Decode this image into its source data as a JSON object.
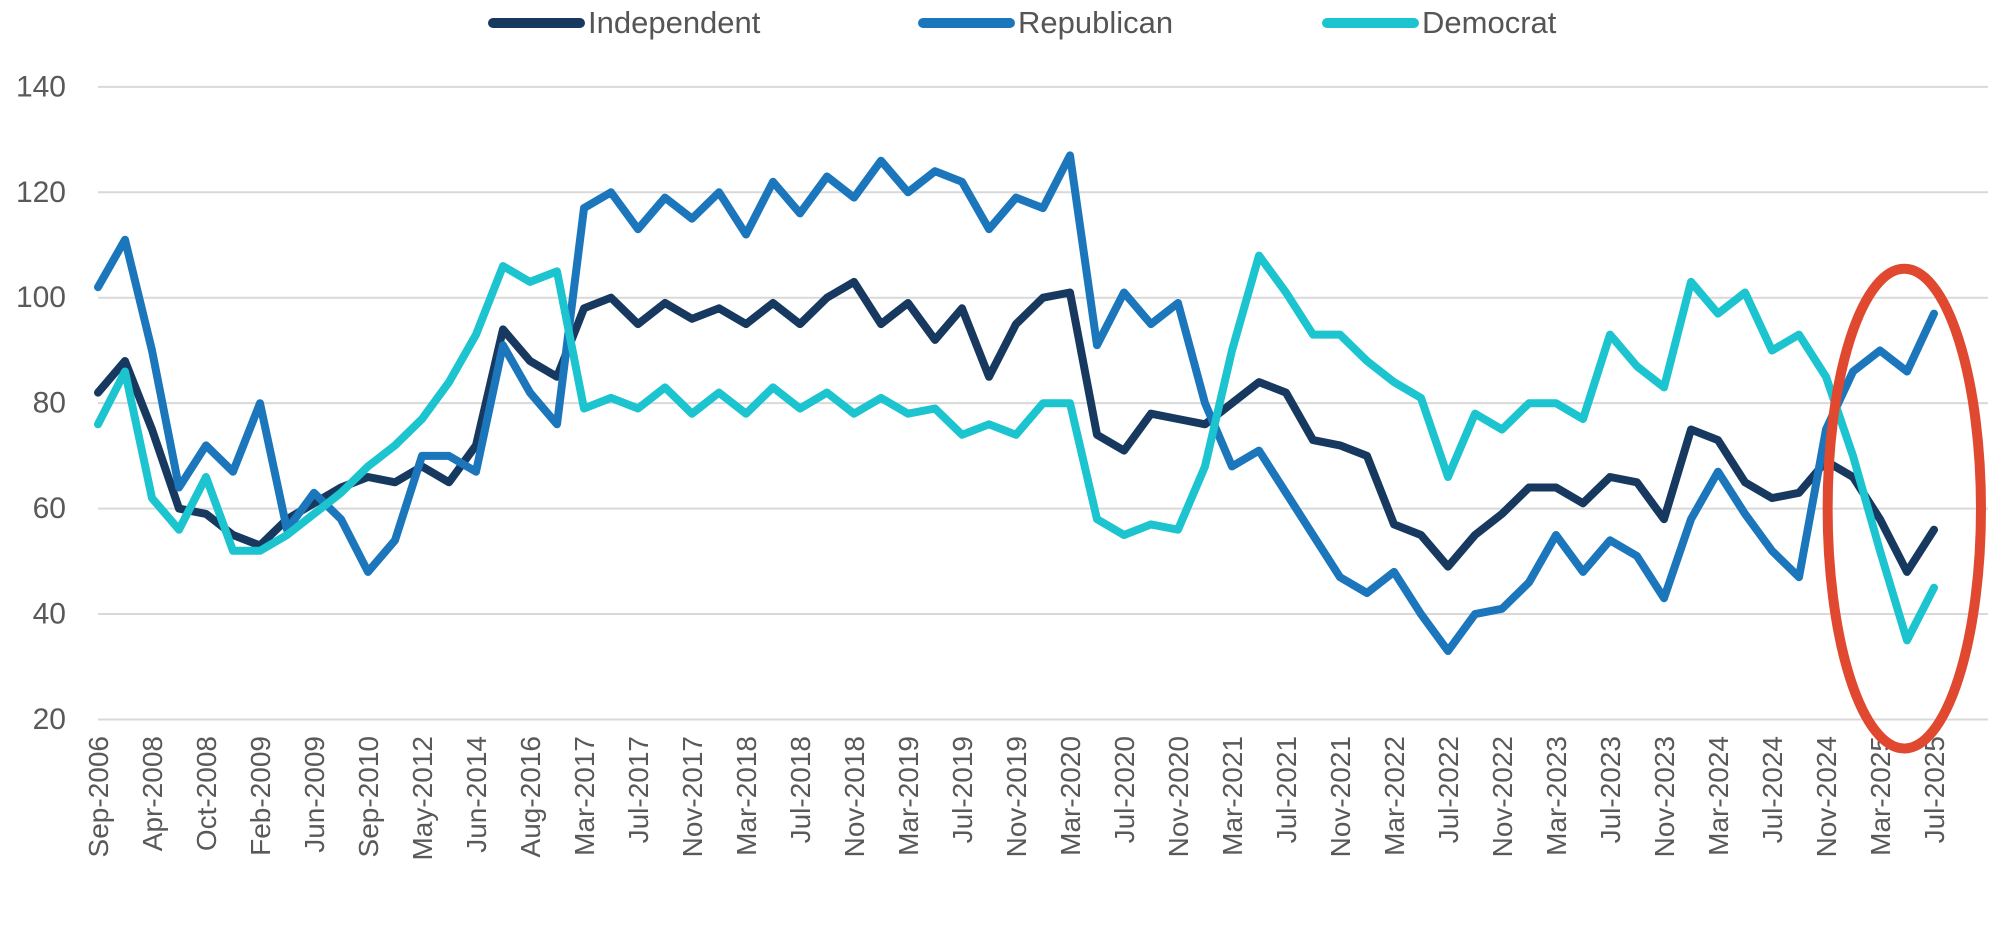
{
  "colors": {
    "background": "#FFFFFF",
    "grid": "#D9D9D9",
    "tick_text": "#595959",
    "legend_text": "#555555",
    "annotation_red": "#E0492F"
  },
  "chart_data": {
    "type": "line",
    "title": "",
    "xlabel": "",
    "ylabel": "",
    "ylim": [
      20,
      140
    ],
    "y_ticks": [
      140,
      120,
      100,
      80,
      60,
      40,
      20
    ],
    "grid": "horizontal light gray lines at each y tick",
    "legend_position": "top-center",
    "x_tick_labels": [
      "Sep-2006",
      "Apr-2008",
      "Oct-2008",
      "Feb-2009",
      "Jun-2009",
      "Sep-2010",
      "May-2012",
      "Jun-2014",
      "Aug-2016",
      "Mar-2017",
      "Jul-2017",
      "Nov-2017",
      "Mar-2018",
      "Jul-2018",
      "Nov-2018",
      "Mar-2019",
      "Jul-2019",
      "Nov-2019",
      "Mar-2020",
      "Jul-2020",
      "Nov-2020",
      "Mar-2021",
      "Jul-2021",
      "Nov-2021",
      "Mar-2022",
      "Jul-2022",
      "Nov-2022",
      "Mar-2023",
      "Jul-2023",
      "Nov-2023",
      "Mar-2024",
      "Jul-2024",
      "Nov-2024",
      "Mar-2025",
      "Jul-2025"
    ],
    "points_per_label_interval": 2,
    "series": [
      {
        "name": "Independent",
        "color": "#17395F",
        "values": [
          82,
          88,
          75,
          60,
          59,
          55,
          53,
          58,
          61,
          64,
          66,
          65,
          68,
          65,
          72,
          94,
          88,
          85,
          98,
          100,
          95,
          99,
          96,
          98,
          95,
          99,
          95,
          100,
          103,
          95,
          99,
          92,
          98,
          85,
          95,
          100,
          101,
          74,
          71,
          78,
          77,
          76,
          80,
          84,
          82,
          73,
          72,
          70,
          57,
          55,
          49,
          55,
          59,
          64,
          64,
          61,
          66,
          65,
          58,
          75,
          73,
          65,
          62,
          63,
          69,
          66,
          58,
          48,
          56
        ]
      },
      {
        "name": "Republican",
        "color": "#1B76BC",
        "values": [
          102,
          111,
          90,
          64,
          72,
          67,
          80,
          56,
          63,
          58,
          48,
          54,
          70,
          70,
          67,
          91,
          82,
          76,
          117,
          120,
          113,
          119,
          115,
          120,
          112,
          122,
          116,
          123,
          119,
          126,
          120,
          124,
          122,
          113,
          119,
          117,
          127,
          91,
          101,
          95,
          99,
          80,
          68,
          71,
          63,
          55,
          47,
          44,
          48,
          40,
          33,
          40,
          41,
          46,
          55,
          48,
          54,
          51,
          43,
          58,
          67,
          59,
          52,
          47,
          75,
          86,
          90,
          86,
          97
        ]
      },
      {
        "name": "Democrat",
        "color": "#1BC4CE",
        "values": [
          76,
          86,
          62,
          56,
          66,
          52,
          52,
          55,
          59,
          63,
          68,
          72,
          77,
          84,
          93,
          106,
          103,
          105,
          79,
          81,
          79,
          83,
          78,
          82,
          78,
          83,
          79,
          82,
          78,
          81,
          78,
          79,
          74,
          76,
          74,
          80,
          80,
          58,
          55,
          57,
          56,
          68,
          90,
          108,
          101,
          93,
          93,
          88,
          84,
          81,
          66,
          78,
          75,
          80,
          80,
          77,
          93,
          87,
          83,
          103,
          97,
          101,
          90,
          93,
          85,
          70,
          52,
          35,
          45
        ]
      }
    ],
    "annotation_ellipse": {
      "description": "red ellipse circling the most recent months (Mar-2025 to Jul-2025)",
      "color": "#E0492F",
      "center_label_index": 33.45,
      "center_value": 60,
      "radius_label_index": 1.42,
      "radius_value": 45.5
    }
  }
}
